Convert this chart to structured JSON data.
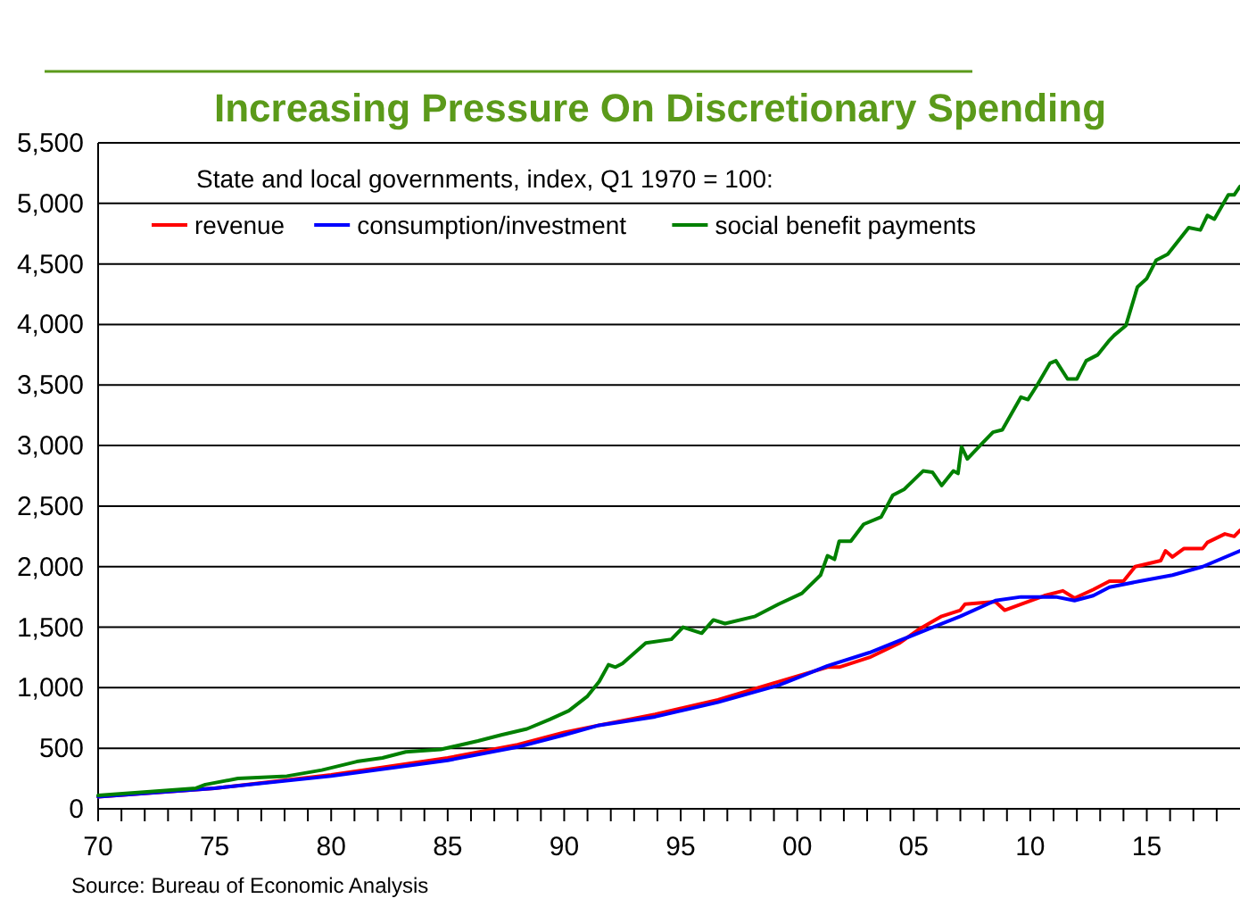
{
  "chart_data": {
    "type": "line",
    "title": "Increasing Pressure On Discretionary Spending",
    "legend_title": "State and local governments, index, Q1 1970 = 100:",
    "annotations": [
      "Source: Bureau of Economic Analysis"
    ],
    "series": [
      {
        "name": "revenue",
        "color": "#ff0000",
        "x": [
          1970,
          1975,
          1980,
          1985,
          1988,
          1990,
          1991.5,
          1993.9,
          1996.6,
          1999.2,
          2001.3,
          2001.8,
          2003.1,
          2004.4,
          2005.2,
          2006.2,
          2007,
          2007.2,
          2008.5,
          2008.9,
          2009.6,
          2010.6,
          2011.4,
          2011.9,
          2012.7,
          2013.4,
          2014,
          2014.5,
          2015.6,
          2015.8,
          2016.1,
          2016.6,
          2017.4,
          2017.6,
          2018.35,
          2018.75,
          2019
        ],
        "values": [
          100,
          170,
          280,
          420,
          530,
          630,
          690,
          780,
          900,
          1050,
          1170,
          1170,
          1250,
          1370,
          1480,
          1590,
          1640,
          1690,
          1710,
          1640,
          1690,
          1760,
          1800,
          1740,
          1810,
          1880,
          1880,
          2000,
          2050,
          2130,
          2080,
          2150,
          2150,
          2200,
          2270,
          2250,
          2300
        ]
      },
      {
        "name": "consumption/investment",
        "color": "#0000ff",
        "x": [
          1970,
          1975,
          1980,
          1985,
          1988,
          1990,
          1991.5,
          1993.9,
          1996.6,
          1999.2,
          2001.3,
          2003.1,
          2004.4,
          2005.7,
          2007,
          2008.5,
          2009.6,
          2011.1,
          2011.9,
          2012.7,
          2013.4,
          2014.7,
          2016.1,
          2017.4,
          2019
        ],
        "values": [
          100,
          170,
          270,
          400,
          510,
          610,
          690,
          760,
          880,
          1020,
          1180,
          1290,
          1390,
          1490,
          1590,
          1720,
          1750,
          1750,
          1720,
          1760,
          1830,
          1880,
          1930,
          2000,
          2130
        ]
      },
      {
        "name": "social benefit payments",
        "color": "#008000",
        "x": [
          1970,
          1974.2,
          1974.6,
          1976,
          1978.1,
          1979.6,
          1981.1,
          1982.2,
          1983.2,
          1984.7,
          1986.3,
          1987.3,
          1988.4,
          1989.4,
          1990.2,
          1991,
          1991.5,
          1991.9,
          1992.2,
          1992.5,
          1993.5,
          1994.6,
          1995.1,
          1995.9,
          1996.4,
          1996.9,
          1998.2,
          1999.2,
          2000.2,
          2001,
          2001.3,
          2001.6,
          2001.8,
          2002.3,
          2002.85,
          2003.6,
          2004.1,
          2004.6,
          2005.4,
          2005.8,
          2006.2,
          2006.7,
          2006.9,
          2007.05,
          2007.3,
          2007.9,
          2008.4,
          2008.8,
          2009.6,
          2009.9,
          2010.3,
          2010.85,
          2011.1,
          2011.6,
          2012,
          2012.4,
          2012.9,
          2013.4,
          2013.6,
          2014.1,
          2014.6,
          2015,
          2015.4,
          2015.9,
          2016.8,
          2017.3,
          2017.6,
          2017.9,
          2018.5,
          2018.75,
          2019
        ],
        "values": [
          110,
          170,
          200,
          250,
          270,
          320,
          390,
          420,
          470,
          490,
          560,
          610,
          660,
          740,
          810,
          930,
          1050,
          1190,
          1170,
          1200,
          1370,
          1400,
          1500,
          1450,
          1560,
          1530,
          1590,
          1690,
          1780,
          1930,
          2090,
          2060,
          2210,
          2210,
          2350,
          2410,
          2590,
          2640,
          2790,
          2780,
          2670,
          2790,
          2770,
          2990,
          2890,
          3010,
          3110,
          3130,
          3400,
          3380,
          3500,
          3680,
          3700,
          3550,
          3550,
          3700,
          3750,
          3870,
          3910,
          3990,
          4310,
          4380,
          4530,
          4580,
          4800,
          4780,
          4900,
          4870,
          5070,
          5070,
          5140
        ]
      }
    ],
    "xlim": [
      1970,
      2019
    ],
    "xticks": [
      {
        "value": 1970,
        "label": "70"
      },
      {
        "value": 1971,
        "label": null
      },
      {
        "value": 1972,
        "label": null
      },
      {
        "value": 1973,
        "label": null
      },
      {
        "value": 1974,
        "label": null
      },
      {
        "value": 1975,
        "label": "75"
      },
      {
        "value": 1976,
        "label": null
      },
      {
        "value": 1977,
        "label": null
      },
      {
        "value": 1978,
        "label": null
      },
      {
        "value": 1979,
        "label": null
      },
      {
        "value": 1980,
        "label": "80"
      },
      {
        "value": 1981,
        "label": null
      },
      {
        "value": 1982,
        "label": null
      },
      {
        "value": 1983,
        "label": null
      },
      {
        "value": 1984,
        "label": null
      },
      {
        "value": 1985,
        "label": "85"
      },
      {
        "value": 1986,
        "label": null
      },
      {
        "value": 1987,
        "label": null
      },
      {
        "value": 1988,
        "label": null
      },
      {
        "value": 1989,
        "label": null
      },
      {
        "value": 1990,
        "label": "90"
      },
      {
        "value": 1991,
        "label": null
      },
      {
        "value": 1992,
        "label": null
      },
      {
        "value": 1993,
        "label": null
      },
      {
        "value": 1994,
        "label": null
      },
      {
        "value": 1995,
        "label": "95"
      },
      {
        "value": 1996,
        "label": null
      },
      {
        "value": 1997,
        "label": null
      },
      {
        "value": 1998,
        "label": null
      },
      {
        "value": 1999,
        "label": null
      },
      {
        "value": 2000,
        "label": "00"
      },
      {
        "value": 2001,
        "label": null
      },
      {
        "value": 2002,
        "label": null
      },
      {
        "value": 2003,
        "label": null
      },
      {
        "value": 2004,
        "label": null
      },
      {
        "value": 2005,
        "label": "05"
      },
      {
        "value": 2006,
        "label": null
      },
      {
        "value": 2007,
        "label": null
      },
      {
        "value": 2008,
        "label": null
      },
      {
        "value": 2009,
        "label": null
      },
      {
        "value": 2010,
        "label": "10"
      },
      {
        "value": 2011,
        "label": null
      },
      {
        "value": 2012,
        "label": null
      },
      {
        "value": 2013,
        "label": null
      },
      {
        "value": 2014,
        "label": null
      },
      {
        "value": 2015,
        "label": "15"
      },
      {
        "value": 2016,
        "label": null
      },
      {
        "value": 2017,
        "label": null
      },
      {
        "value": 2018,
        "label": null
      }
    ],
    "ylim": [
      0,
      5500
    ],
    "yticks": [
      {
        "value": 0,
        "label": "0"
      },
      {
        "value": 500,
        "label": "500"
      },
      {
        "value": 1000,
        "label": "1,000"
      },
      {
        "value": 1500,
        "label": "1,500"
      },
      {
        "value": 2000,
        "label": "2,000"
      },
      {
        "value": 2500,
        "label": "2,500"
      },
      {
        "value": 3000,
        "label": "3,000"
      },
      {
        "value": 3500,
        "label": "3,500"
      },
      {
        "value": 4000,
        "label": "4,000"
      },
      {
        "value": 4500,
        "label": "4,500"
      },
      {
        "value": 5000,
        "label": "5,000"
      },
      {
        "value": 5500,
        "label": "5,500"
      }
    ],
    "grid": "y",
    "legend": "top",
    "marker": "none",
    "line_style": "solid"
  }
}
